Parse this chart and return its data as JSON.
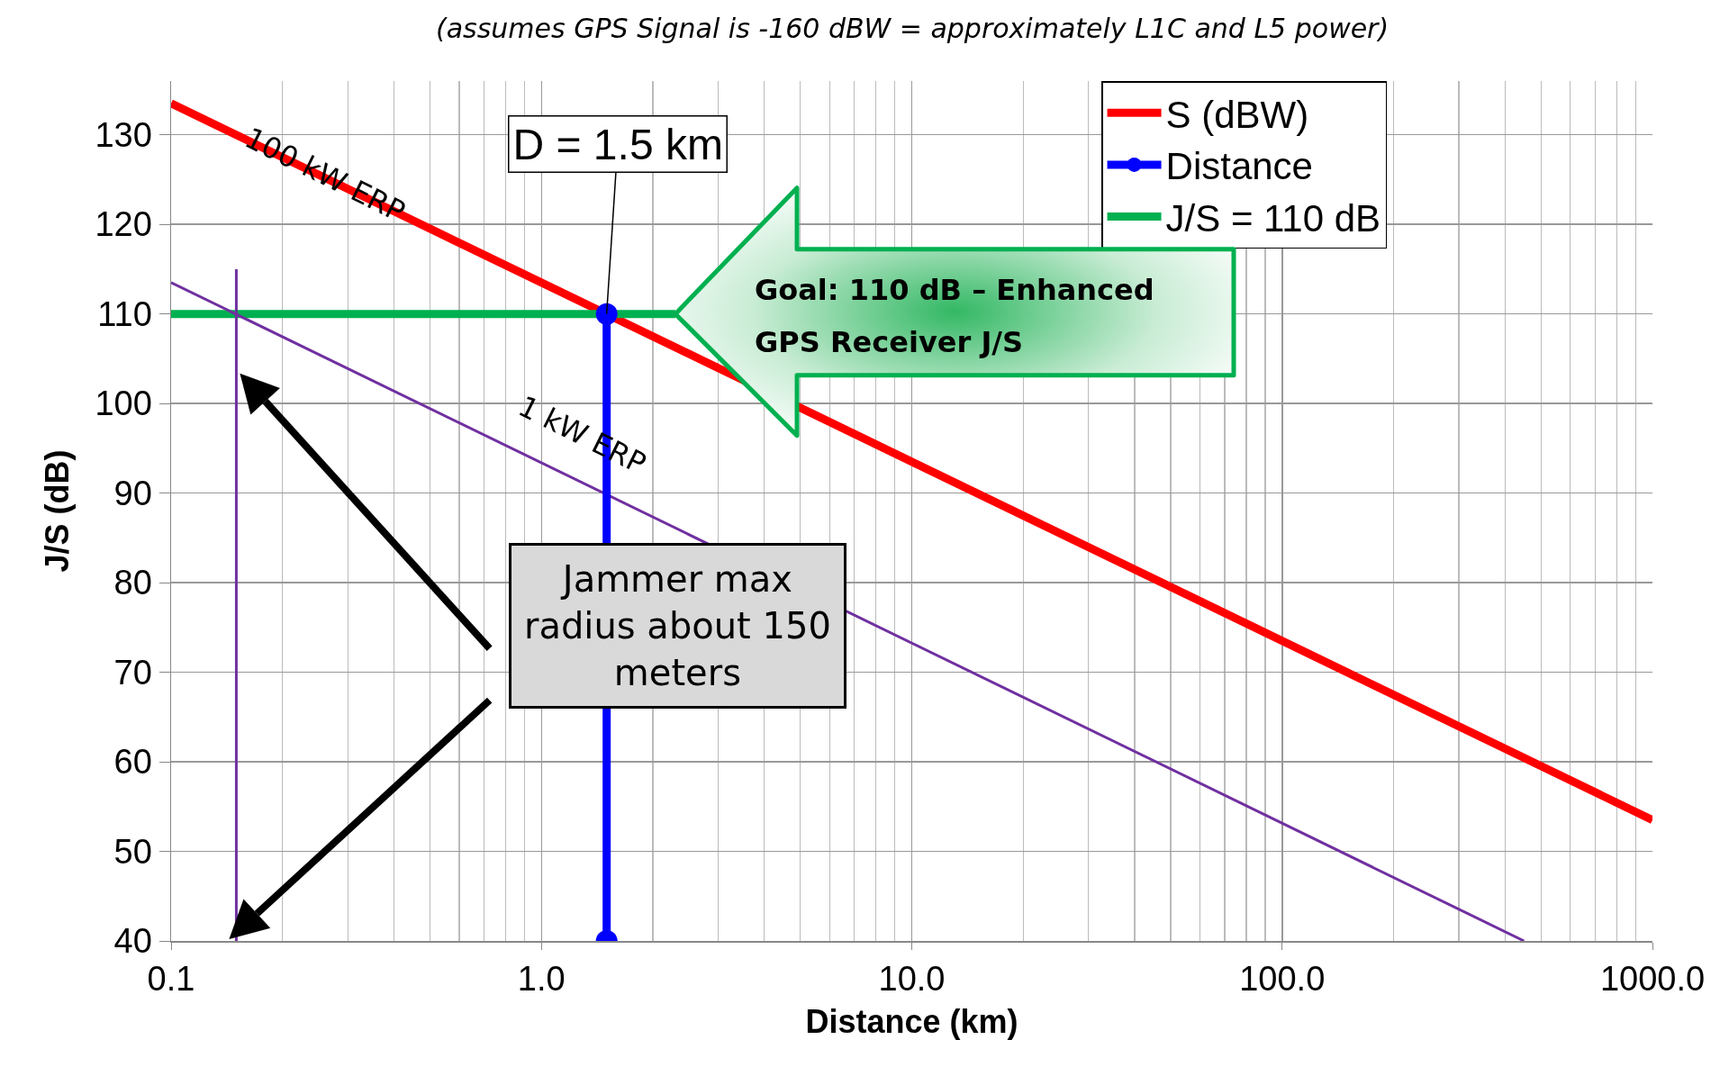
{
  "chart_data": {
    "type": "line",
    "subtitle": "(assumes GPS Signal is -160 dBW = approximately L1C and L5 power)",
    "xlabel": "Distance (km)",
    "ylabel": "J/S (dB)",
    "log": "x",
    "xlim": [
      0.1,
      1000
    ],
    "xticks": [
      {
        "value": 0.1,
        "label": "0.1"
      },
      {
        "value": 1,
        "label": "1.0"
      },
      {
        "value": 10,
        "label": "10.0"
      },
      {
        "value": 100,
        "label": "100.0"
      },
      {
        "value": 1000,
        "label": "1000.0"
      }
    ],
    "ylim": [
      40,
      136
    ],
    "yticks": [
      40,
      50,
      60,
      70,
      80,
      90,
      100,
      110,
      120,
      130
    ],
    "grid": true,
    "legend": "top right",
    "series": [
      {
        "name": "S (dBW)",
        "color": "#ff0000",
        "x": [
          0.1,
          1000
        ],
        "values": [
          133.5,
          53.5
        ],
        "marker": "none"
      },
      {
        "name": "Distance",
        "color": "#0000ff",
        "x": [
          1.5,
          1.5
        ],
        "values": [
          40,
          110
        ],
        "marker": "circle"
      },
      {
        "name": "J/S = 110 dB",
        "color": "#00b050",
        "x": [
          0.1,
          2.3
        ],
        "values": [
          110,
          110
        ],
        "marker": "none"
      },
      {
        "color": "#7030a0",
        "x": [
          0.1,
          450
        ],
        "values": [
          113.5,
          40
        ],
        "marker": "none"
      },
      {
        "color": "#7030a0",
        "x": [
          0.15,
          0.15
        ],
        "values": [
          40,
          115
        ],
        "marker": "none"
      }
    ],
    "annotations": [
      {
        "text": "100 kW ERP",
        "x": 0.26,
        "y": 125.5
      },
      "1 kW ERP",
      {
        "text": "D = 1.5 km",
        "x": 1.5,
        "y": 110
      },
      {
        "text": "Goal: 110 dB – Enhanced GPS Receiver J/S",
        "x": 2.3,
        "y": 110
      },
      "Jammer max radius about 150 meters"
    ]
  }
}
